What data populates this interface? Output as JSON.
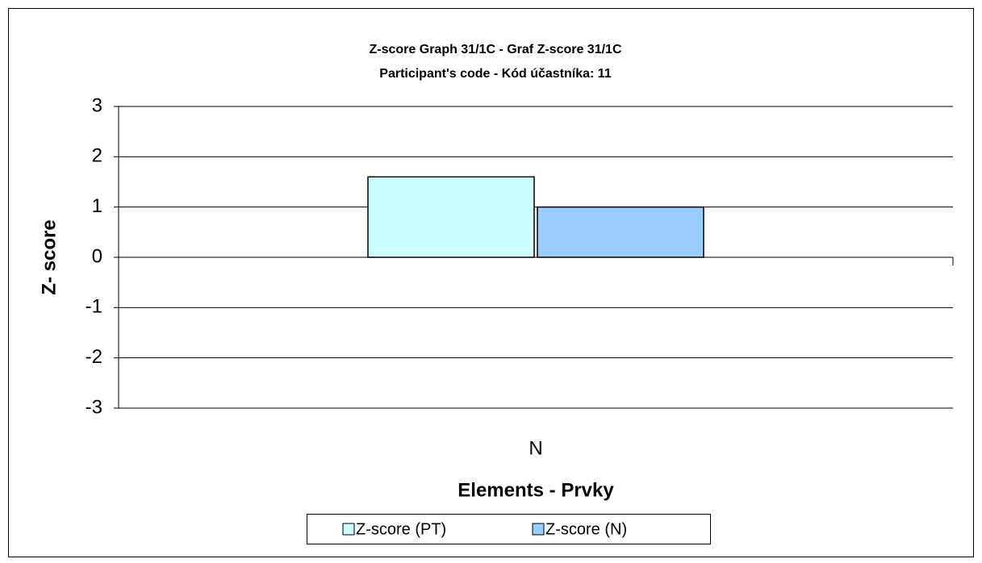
{
  "chart_data": {
    "type": "bar",
    "title": "Z-score Graph 31/1C - Graf Z-score 31/1C",
    "subtitle": "Participant's code - Kód účastníka:  11",
    "x_label": "Elements - Prvky",
    "y_label": "Z- score",
    "categories": [
      "N"
    ],
    "series": [
      {
        "name": "Z-score (PT)",
        "color": "#ccffff",
        "values": [
          1.6
        ]
      },
      {
        "name": "Z-score (N)",
        "color": "#99ccff",
        "values": [
          1.0
        ]
      }
    ],
    "ylim": [
      -3,
      3
    ],
    "yticks": [
      -3,
      -2,
      -1,
      0,
      1,
      2,
      3
    ],
    "grid": true,
    "legend": "bottom"
  }
}
